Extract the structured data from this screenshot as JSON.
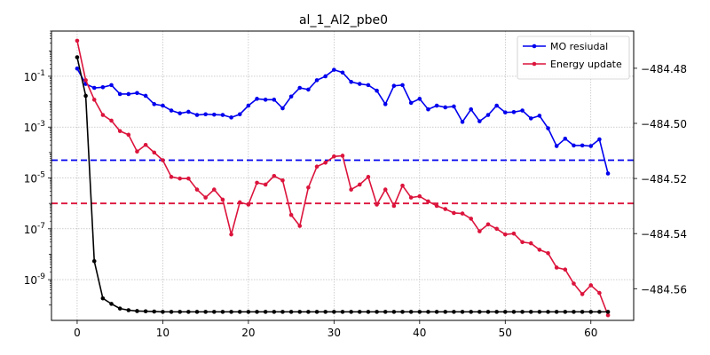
{
  "chart_data": {
    "type": "line",
    "title": "al_1_Al2_pbe0",
    "xlabel": "",
    "ylabel_left": "",
    "ylabel_right": "",
    "grid": true,
    "legend_position": "top-right",
    "x_ticks": [
      0,
      10,
      20,
      30,
      40,
      50,
      60
    ],
    "x_lim": [
      -3,
      65
    ],
    "y_left": {
      "scale": "log",
      "lim": [
        2.5e-11,
        6
      ],
      "ticks": [
        "10^-9",
        "10^-7",
        "10^-5",
        "10^-3",
        "10^-1"
      ],
      "tick_values": [
        1e-09,
        1e-07,
        1e-05,
        0.001,
        0.1
      ]
    },
    "y_right": {
      "scale": "linear",
      "lim": [
        -484.5715,
        -484.4665
      ],
      "ticks": [
        "−484.48",
        "−484.50",
        "−484.52",
        "−484.54",
        "−484.56"
      ],
      "tick_values": [
        -484.48,
        -484.5,
        -484.52,
        -484.54,
        -484.56
      ]
    },
    "series": [
      {
        "name": "MO resiudal",
        "axis": "left",
        "color": "#0000ee",
        "values": [
          [
            0,
            0.2
          ],
          [
            1,
            0.05
          ],
          [
            2,
            0.035
          ],
          [
            3,
            0.037
          ],
          [
            4,
            0.045
          ],
          [
            5,
            0.02
          ],
          [
            6,
            0.02
          ],
          [
            7,
            0.022
          ],
          [
            8,
            0.017
          ],
          [
            9,
            0.008
          ],
          [
            10,
            0.007
          ],
          [
            11,
            0.0045
          ],
          [
            12,
            0.0035
          ],
          [
            13,
            0.004
          ],
          [
            14,
            0.003
          ],
          [
            15,
            0.0032
          ],
          [
            16,
            0.0031
          ],
          [
            17,
            0.003
          ],
          [
            18,
            0.0024
          ],
          [
            19,
            0.0032
          ],
          [
            20,
            0.007
          ],
          [
            21,
            0.013
          ],
          [
            22,
            0.012
          ],
          [
            23,
            0.012
          ],
          [
            24,
            0.0055
          ],
          [
            25,
            0.016
          ],
          [
            26,
            0.035
          ],
          [
            27,
            0.03
          ],
          [
            28,
            0.07
          ],
          [
            29,
            0.1
          ],
          [
            30,
            0.18
          ],
          [
            31,
            0.14
          ],
          [
            32,
            0.06
          ],
          [
            33,
            0.05
          ],
          [
            34,
            0.045
          ],
          [
            35,
            0.027
          ],
          [
            36,
            0.008
          ],
          [
            37,
            0.042
          ],
          [
            38,
            0.045
          ],
          [
            39,
            0.009
          ],
          [
            40,
            0.013
          ],
          [
            41,
            0.005
          ],
          [
            42,
            0.007
          ],
          [
            43,
            0.006
          ],
          [
            44,
            0.0065
          ],
          [
            45,
            0.0016
          ],
          [
            46,
            0.005
          ],
          [
            47,
            0.0017
          ],
          [
            48,
            0.003
          ],
          [
            49,
            0.007
          ],
          [
            50,
            0.0038
          ],
          [
            51,
            0.0039
          ],
          [
            52,
            0.0045
          ],
          [
            53,
            0.0022
          ],
          [
            54,
            0.0028
          ],
          [
            55,
            0.0009
          ],
          [
            56,
            0.00018
          ],
          [
            57,
            0.00035
          ],
          [
            58,
            0.00019
          ],
          [
            59,
            0.00019
          ],
          [
            60,
            0.00018
          ],
          [
            61,
            0.00033
          ],
          [
            62,
            1.5e-05
          ]
        ]
      },
      {
        "name": "Energy update",
        "axis": "left",
        "color": "#dc143c",
        "values": [
          [
            0,
            2.5
          ],
          [
            1,
            0.07
          ],
          [
            2,
            0.012
          ],
          [
            3,
            0.003
          ],
          [
            4,
            0.0018
          ],
          [
            5,
            0.0007
          ],
          [
            6,
            0.0005
          ],
          [
            7,
            0.00011
          ],
          [
            8,
            0.0002
          ],
          [
            9,
            0.0001
          ],
          [
            10,
            5e-05
          ],
          [
            11,
            1.1e-05
          ],
          [
            12,
            9.5e-06
          ],
          [
            13,
            9.5e-06
          ],
          [
            14,
            3.5e-06
          ],
          [
            15,
            1.7e-06
          ],
          [
            16,
            3.5e-06
          ],
          [
            17,
            1.4e-06
          ],
          [
            18,
            6e-08
          ],
          [
            19,
            1.1e-06
          ],
          [
            20,
            9e-07
          ],
          [
            21,
            6.5e-06
          ],
          [
            22,
            5.5e-06
          ],
          [
            23,
            1.2e-05
          ],
          [
            24,
            8e-06
          ],
          [
            25,
            3.5e-07
          ],
          [
            26,
            1.3e-07
          ],
          [
            27,
            4.2e-06
          ],
          [
            28,
            2.8e-05
          ],
          [
            29,
            4e-05
          ],
          [
            30,
            7e-05
          ],
          [
            31,
            7.5e-05
          ],
          [
            32,
            3.5e-06
          ],
          [
            33,
            5.5e-06
          ],
          [
            34,
            1.1e-05
          ],
          [
            35,
            9e-07
          ],
          [
            36,
            3.5e-06
          ],
          [
            37,
            8e-07
          ],
          [
            38,
            5e-06
          ],
          [
            39,
            1.7e-06
          ],
          [
            40,
            1.9e-06
          ],
          [
            41,
            1.2e-06
          ],
          [
            42,
            8e-07
          ],
          [
            43,
            6e-07
          ],
          [
            44,
            4.2e-07
          ],
          [
            45,
            4e-07
          ],
          [
            46,
            2.5e-07
          ],
          [
            47,
            8e-08
          ],
          [
            48,
            1.5e-07
          ],
          [
            49,
            1e-07
          ],
          [
            50,
            6e-08
          ],
          [
            51,
            6.5e-08
          ],
          [
            52,
            3e-08
          ],
          [
            53,
            2.7e-08
          ],
          [
            54,
            1.5e-08
          ],
          [
            55,
            1.1e-08
          ],
          [
            56,
            3e-09
          ],
          [
            57,
            2.5e-09
          ],
          [
            58,
            7e-10
          ],
          [
            59,
            2.7e-10
          ],
          [
            60,
            6e-10
          ],
          [
            61,
            3e-10
          ],
          [
            62,
            4e-11
          ]
        ]
      },
      {
        "name": "",
        "axis": "right",
        "color": "#000000",
        "values": [
          [
            0,
            -484.476
          ],
          [
            1,
            -484.49
          ],
          [
            2,
            -484.55
          ],
          [
            3,
            -484.5635
          ],
          [
            4,
            -484.5655
          ],
          [
            5,
            -484.5672
          ],
          [
            6,
            -484.5678
          ],
          [
            7,
            -484.5681
          ],
          [
            8,
            -484.5682
          ],
          [
            9,
            -484.5683
          ],
          [
            10,
            -484.5684
          ],
          [
            11,
            -484.5684
          ],
          [
            12,
            -484.5684
          ],
          [
            13,
            -484.5684
          ],
          [
            14,
            -484.5684
          ],
          [
            15,
            -484.5684
          ],
          [
            16,
            -484.5684
          ],
          [
            17,
            -484.5684
          ],
          [
            18,
            -484.5684
          ],
          [
            19,
            -484.5684
          ],
          [
            20,
            -484.5684
          ],
          [
            21,
            -484.5684
          ],
          [
            22,
            -484.5684
          ],
          [
            23,
            -484.5684
          ],
          [
            24,
            -484.5684
          ],
          [
            25,
            -484.5684
          ],
          [
            26,
            -484.5684
          ],
          [
            27,
            -484.5684
          ],
          [
            28,
            -484.5684
          ],
          [
            29,
            -484.5684
          ],
          [
            30,
            -484.5684
          ],
          [
            31,
            -484.5684
          ],
          [
            32,
            -484.5684
          ],
          [
            33,
            -484.5684
          ],
          [
            34,
            -484.5684
          ],
          [
            35,
            -484.5684
          ],
          [
            36,
            -484.5684
          ],
          [
            37,
            -484.5684
          ],
          [
            38,
            -484.5684
          ],
          [
            39,
            -484.5684
          ],
          [
            40,
            -484.5684
          ],
          [
            41,
            -484.5684
          ],
          [
            42,
            -484.5684
          ],
          [
            43,
            -484.5684
          ],
          [
            44,
            -484.5684
          ],
          [
            45,
            -484.5684
          ],
          [
            46,
            -484.5684
          ],
          [
            47,
            -484.5684
          ],
          [
            48,
            -484.5684
          ],
          [
            49,
            -484.5684
          ],
          [
            50,
            -484.5684
          ],
          [
            51,
            -484.5684
          ],
          [
            52,
            -484.5684
          ],
          [
            53,
            -484.5684
          ],
          [
            54,
            -484.5684
          ],
          [
            55,
            -484.5684
          ],
          [
            56,
            -484.5684
          ],
          [
            57,
            -484.5684
          ],
          [
            58,
            -484.5684
          ],
          [
            59,
            -484.5684
          ],
          [
            60,
            -484.5684
          ],
          [
            61,
            -484.5684
          ],
          [
            62,
            -484.5684
          ]
        ]
      }
    ],
    "thresholds": [
      {
        "axis": "left",
        "value": 5e-05,
        "color": "#0000ee",
        "style": "dashed"
      },
      {
        "axis": "left",
        "value": 1e-06,
        "color": "#dc143c",
        "style": "dashed"
      }
    ]
  }
}
